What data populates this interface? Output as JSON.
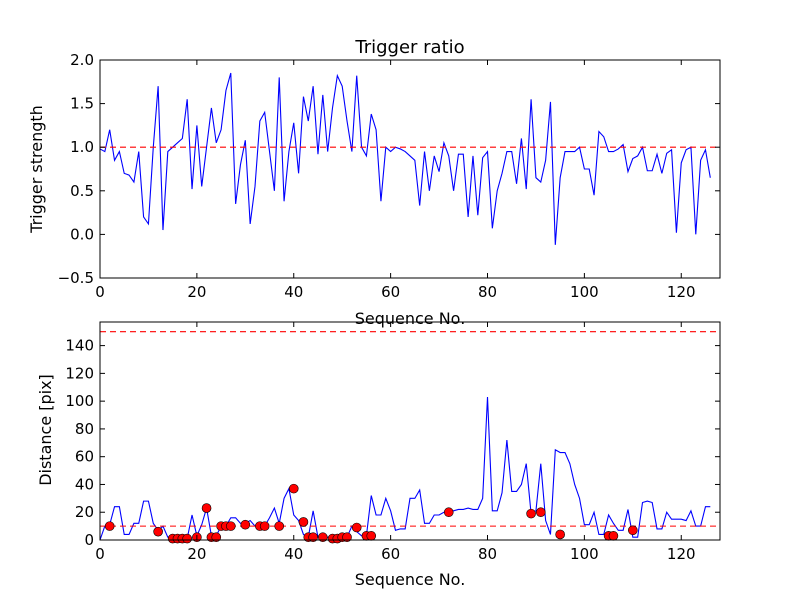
{
  "chart_data": [
    {
      "type": "line",
      "title": "Trigger ratio",
      "xlabel": "Sequence No.",
      "ylabel": "Trigger strength",
      "xlim": [
        0,
        128
      ],
      "ylim": [
        -0.5,
        2.0
      ],
      "x_ticks": [
        0,
        20,
        40,
        60,
        80,
        100,
        120
      ],
      "y_ticks": [
        "−0.5",
        "0.0",
        "0.5",
        "1.0",
        "1.5",
        "2.0"
      ],
      "y_tick_values": [
        -0.5,
        0.0,
        0.5,
        1.0,
        1.5,
        2.0
      ],
      "grid": false,
      "line_color": "#0000ff",
      "threshold_color": "#ff0000",
      "thresholds": [
        1.0
      ],
      "series": [
        {
          "values": [
            0.98,
            0.95,
            1.2,
            0.85,
            0.95,
            0.7,
            0.68,
            0.6,
            0.95,
            0.2,
            0.12,
            1.0,
            1.7,
            0.05,
            0.95,
            1.0,
            1.05,
            1.1,
            1.55,
            0.52,
            1.25,
            0.55,
            1.0,
            1.45,
            1.05,
            1.2,
            1.65,
            1.85,
            0.35,
            0.8,
            1.08,
            0.12,
            0.55,
            1.3,
            1.4,
            0.95,
            0.5,
            1.8,
            0.38,
            0.95,
            1.28,
            0.7,
            1.58,
            1.3,
            1.7,
            0.92,
            1.6,
            0.95,
            1.45,
            1.82,
            1.7,
            1.3,
            0.95,
            1.82,
            1.0,
            0.9,
            1.38,
            1.2,
            0.38,
            1.0,
            0.95,
            1.0,
            0.98,
            0.95,
            0.9,
            0.85,
            0.33,
            0.95,
            0.5,
            0.9,
            0.72,
            1.05,
            0.9,
            0.5,
            0.92,
            0.92,
            0.2,
            0.9,
            0.22,
            0.88,
            0.95,
            0.07,
            0.5,
            0.7,
            0.95,
            0.95,
            0.58,
            1.1,
            0.52,
            1.55,
            0.65,
            0.6,
            0.85,
            1.52,
            -0.12,
            0.65,
            0.95,
            0.95,
            0.95,
            1.0,
            0.75,
            0.75,
            0.45,
            1.18,
            1.12,
            0.95,
            0.95,
            0.98,
            1.03,
            0.72,
            0.87,
            0.9,
            1.0,
            0.73,
            0.73,
            0.92,
            0.7,
            0.93,
            0.97,
            0.02,
            0.82,
            0.97,
            1.0,
            0.0,
            0.85,
            0.97,
            0.65
          ]
        }
      ]
    },
    {
      "type": "line",
      "title": "",
      "xlabel": "Sequence No.",
      "ylabel": "Distance [pix]",
      "xlim": [
        0,
        128
      ],
      "ylim": [
        0,
        157
      ],
      "x_ticks": [
        0,
        20,
        40,
        60,
        80,
        100,
        120
      ],
      "y_ticks": [
        0,
        20,
        40,
        60,
        80,
        100,
        120,
        140
      ],
      "grid": false,
      "line_color": "#0000ff",
      "threshold_color": "#ff0000",
      "marker_color": "#ff0000",
      "thresholds": [
        10,
        150
      ],
      "series": [
        {
          "values": [
            0,
            10,
            11,
            24,
            24,
            4,
            4,
            12,
            12,
            28,
            28,
            12,
            7,
            10,
            2,
            2,
            1,
            2,
            1,
            18,
            3,
            11,
            23,
            3,
            3,
            10,
            10,
            16,
            16,
            12,
            12,
            14,
            10,
            10,
            10,
            16,
            23,
            12,
            30,
            37,
            18,
            14,
            4,
            2,
            21,
            2,
            2,
            2,
            2,
            2,
            2,
            2,
            10,
            6,
            3,
            3,
            32,
            18,
            18,
            30,
            21,
            7,
            8,
            8,
            30,
            30,
            36,
            12,
            12,
            18,
            18,
            20,
            21,
            21,
            22,
            22,
            23,
            22,
            22,
            30,
            103,
            21,
            21,
            34,
            72,
            35,
            35,
            40,
            55,
            19,
            21,
            55,
            14,
            4,
            65,
            63,
            63,
            55,
            40,
            30,
            11,
            11,
            20,
            4,
            4,
            18,
            12,
            7,
            7,
            22,
            2,
            2,
            27,
            28,
            27,
            8,
            8,
            20,
            15,
            15,
            15,
            14,
            21,
            10,
            10,
            24,
            24
          ]
        },
        {
          "name": "",
          "x": [
            2,
            12,
            15,
            16,
            17,
            18,
            20,
            22,
            23,
            24,
            25,
            26,
            27,
            30,
            33,
            34,
            37,
            40,
            42,
            43,
            44,
            46,
            48,
            49,
            50,
            51,
            53,
            55,
            56,
            72,
            89,
            91,
            95,
            105,
            106,
            110
          ],
          "values": [
            10,
            6,
            1,
            1,
            1,
            1,
            2,
            23,
            2,
            2,
            10,
            10,
            10,
            11,
            10,
            10,
            10,
            37,
            13,
            2,
            2,
            2,
            1,
            1,
            2,
            2,
            9,
            3,
            3,
            20,
            19,
            20,
            4,
            3,
            3,
            7
          ]
        }
      ]
    }
  ]
}
